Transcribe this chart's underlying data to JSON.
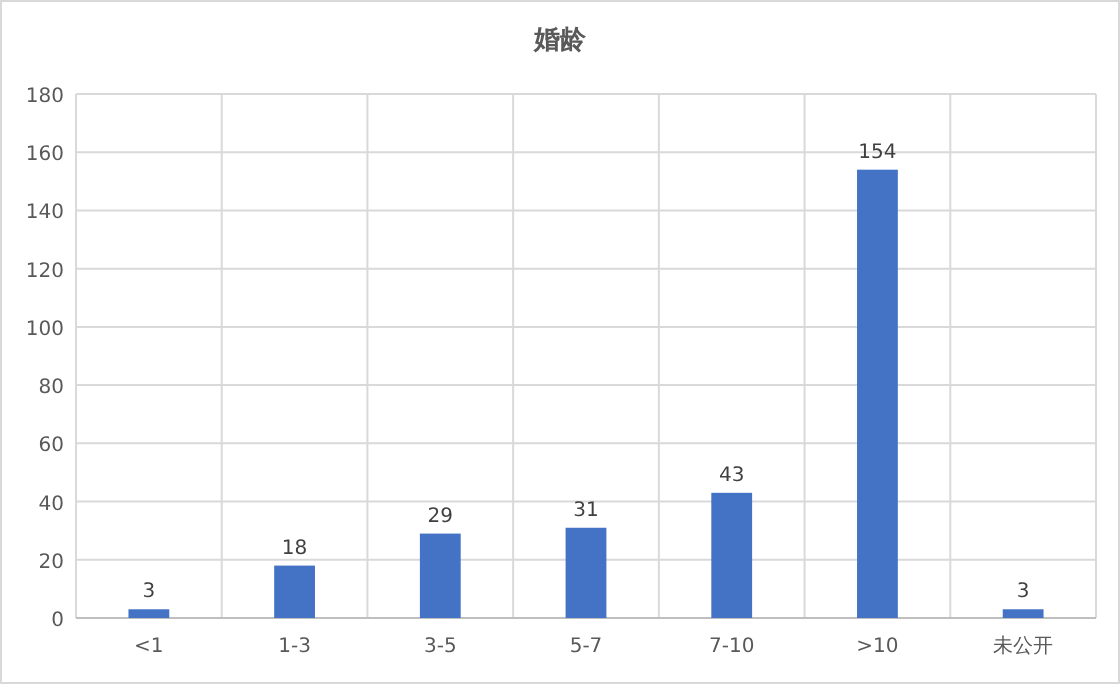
{
  "chart_data": {
    "type": "bar",
    "title": "婚龄",
    "categories": [
      "<1",
      "1-3",
      "3-5",
      "5-7",
      "7-10",
      ">10",
      "未公开"
    ],
    "values": [
      3,
      18,
      29,
      31,
      43,
      154,
      3
    ],
    "color": "#4472c4",
    "ylim": [
      0,
      180
    ],
    "yticks": [
      0,
      20,
      40,
      60,
      80,
      100,
      120,
      140,
      160,
      180
    ],
    "grid": true,
    "data_labels": true
  }
}
